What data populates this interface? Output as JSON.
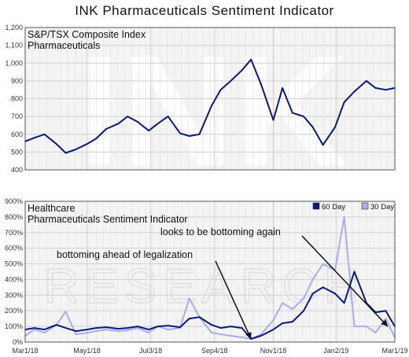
{
  "title": "INK Pharmaceuticals Sentiment Indicator",
  "x_ticks": [
    "Mar1/18",
    "May1/18",
    "Jul3/18",
    "Sep4/18",
    "Nov1/18",
    "Jan2/19",
    "Mar1/19"
  ],
  "watermark": {
    "top": "INK",
    "bottom": "RESEARCH"
  },
  "colors": {
    "series_60": "#0a1a78",
    "series_30": "#a8acf2",
    "grid": "#cfcfcf",
    "panel_bg": "#f4f4f4"
  },
  "chart_data": [
    {
      "type": "line",
      "panel": "top",
      "title": "S&P/TSX Composite Index Pharmaceuticals",
      "title_lines": [
        "S&P/TSX Composite Index",
        "Pharmaceuticals"
      ],
      "xlabel": "",
      "ylabel": "",
      "y_ticks": [
        "1,200",
        "1,100",
        "1,000",
        "900",
        "800",
        "700",
        "600",
        "500",
        "400"
      ],
      "ylim": [
        400,
        1200
      ],
      "xlim": [
        "2018-03-01",
        "2019-03-01"
      ],
      "grid": true,
      "series": [
        {
          "x": [
            "2018-03-01",
            "2018-03-10",
            "2018-03-20",
            "2018-04-01",
            "2018-04-10",
            "2018-04-20",
            "2018-05-01",
            "2018-05-10",
            "2018-05-20",
            "2018-06-01",
            "2018-06-10",
            "2018-06-20",
            "2018-07-01",
            "2018-07-10",
            "2018-07-20",
            "2018-08-01",
            "2018-08-10",
            "2018-08-20",
            "2018-09-01",
            "2018-09-10",
            "2018-09-20",
            "2018-10-01",
            "2018-10-10",
            "2018-10-20",
            "2018-11-01",
            "2018-11-10",
            "2018-11-20",
            "2018-12-01",
            "2018-12-10",
            "2018-12-20",
            "2019-01-01",
            "2019-01-10",
            "2019-01-20",
            "2019-02-01",
            "2019-02-10",
            "2019-02-20",
            "2019-03-01"
          ],
          "values": [
            560,
            580,
            600,
            545,
            495,
            515,
            545,
            575,
            630,
            660,
            700,
            670,
            620,
            660,
            700,
            605,
            590,
            600,
            760,
            850,
            900,
            960,
            1020,
            880,
            680,
            860,
            720,
            700,
            640,
            540,
            640,
            780,
            840,
            900,
            860,
            850,
            860
          ]
        }
      ]
    },
    {
      "type": "line",
      "panel": "bottom",
      "title": "Healthcare Pharmaceuticals Sentiment Indicator",
      "title_lines": [
        "Healthcare",
        "Pharmaceuticals Sentiment Indicator"
      ],
      "xlabel": "",
      "ylabel": "",
      "y_ticks": [
        "900%",
        "800%",
        "700%",
        "600%",
        "500%",
        "400%",
        "300%",
        "200%",
        "100%",
        "0%"
      ],
      "ylim": [
        0,
        900
      ],
      "xlim": [
        "2018-03-01",
        "2019-03-01"
      ],
      "grid": true,
      "legend": {
        "placement": "top-right"
      },
      "series": [
        {
          "name": "60 Day",
          "x": [
            "2018-03-01",
            "2018-03-10",
            "2018-03-20",
            "2018-04-01",
            "2018-04-10",
            "2018-04-20",
            "2018-05-01",
            "2018-05-10",
            "2018-05-20",
            "2018-06-01",
            "2018-06-10",
            "2018-06-20",
            "2018-07-01",
            "2018-07-10",
            "2018-07-20",
            "2018-08-01",
            "2018-08-10",
            "2018-08-20",
            "2018-09-01",
            "2018-09-10",
            "2018-09-20",
            "2018-10-01",
            "2018-10-10",
            "2018-10-20",
            "2018-11-01",
            "2018-11-10",
            "2018-11-20",
            "2018-12-01",
            "2018-12-10",
            "2018-12-20",
            "2019-01-01",
            "2019-01-10",
            "2019-01-20",
            "2019-02-01",
            "2019-02-10",
            "2019-02-20",
            "2019-03-01"
          ],
          "values": [
            80,
            90,
            80,
            110,
            90,
            70,
            80,
            90,
            95,
            85,
            90,
            100,
            80,
            100,
            105,
            95,
            150,
            160,
            110,
            90,
            100,
            90,
            20,
            40,
            80,
            120,
            130,
            200,
            310,
            350,
            310,
            250,
            450,
            250,
            190,
            200,
            100
          ]
        },
        {
          "name": "30 Day",
          "x": [
            "2018-03-01",
            "2018-03-10",
            "2018-03-20",
            "2018-04-01",
            "2018-04-10",
            "2018-04-20",
            "2018-05-01",
            "2018-05-10",
            "2018-05-20",
            "2018-06-01",
            "2018-06-10",
            "2018-06-20",
            "2018-07-01",
            "2018-07-10",
            "2018-07-20",
            "2018-08-01",
            "2018-08-10",
            "2018-08-20",
            "2018-09-01",
            "2018-09-10",
            "2018-09-20",
            "2018-10-01",
            "2018-10-10",
            "2018-10-20",
            "2018-11-01",
            "2018-11-10",
            "2018-11-20",
            "2018-12-01",
            "2018-12-10",
            "2018-12-20",
            "2019-01-01",
            "2019-01-10",
            "2019-01-20",
            "2019-02-01",
            "2019-02-10",
            "2019-02-20",
            "2019-03-01"
          ],
          "values": [
            40,
            80,
            60,
            110,
            195,
            50,
            60,
            70,
            80,
            70,
            75,
            90,
            60,
            100,
            80,
            90,
            280,
            160,
            60,
            50,
            40,
            30,
            20,
            50,
            140,
            250,
            210,
            280,
            400,
            500,
            460,
            800,
            100,
            100,
            60,
            150,
            30
          ]
        }
      ],
      "annotations": [
        {
          "text": "bottoming ahead of legalization",
          "x": "2018-10-10",
          "y": 20
        },
        {
          "text": "looks to be bottoming again",
          "x": "2019-02-22",
          "y": 100
        }
      ]
    }
  ]
}
